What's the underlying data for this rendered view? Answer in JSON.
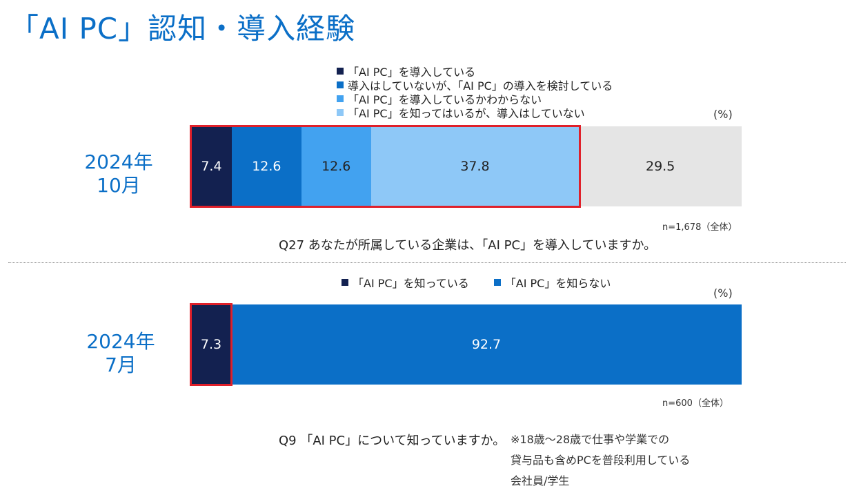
{
  "title": "「AI PC」認知・導入経験",
  "colors": {
    "title": "#0b6fc7",
    "highlight": "#e0202a",
    "navy": "#132150",
    "blue": "#0b6fc7",
    "mid_blue": "#42a2f0",
    "light_blue": "#8ec8f7",
    "gray": "#e5e5e5"
  },
  "chart_data": [
    {
      "type": "bar",
      "orientation": "horizontal-stacked-100",
      "period": [
        "2024年",
        "10月"
      ],
      "unit": "(%)",
      "series": [
        {
          "name": "「AI PC」を導入している",
          "value": 7.4,
          "color": "#132150",
          "text_color": "#ffffff"
        },
        {
          "name": "導入はしていないが、「AI PC」の導入を検討している",
          "value": 12.6,
          "color": "#0b6fc7",
          "text_color": "#ffffff"
        },
        {
          "name": "「AI PC」を導入しているかわからない",
          "value": 12.6,
          "color": "#42a2f0",
          "text_color": "#222222"
        },
        {
          "name": "「AI PC」を知ってはいるが、導入はしていない",
          "value": 37.8,
          "color": "#8ec8f7",
          "text_color": "#222222"
        },
        {
          "name": "",
          "value": 29.5,
          "color": "#e5e5e5",
          "text_color": "#222222"
        }
      ],
      "highlighted_series_count": 4,
      "sample": "n=1,678（全体）",
      "question": "Q27 あなたが所属している企業は、「AI PC」を導入していますか。"
    },
    {
      "type": "bar",
      "orientation": "horizontal-stacked-100",
      "period": [
        "2024年",
        "7月"
      ],
      "unit": "(%)",
      "series": [
        {
          "name": "「AI PC」を知っている",
          "value": 7.3,
          "color": "#132150",
          "text_color": "#ffffff"
        },
        {
          "name": "「AI PC」を知らない",
          "value": 92.7,
          "color": "#0b6fc7",
          "text_color": "#ffffff"
        }
      ],
      "highlighted_series_count": 1,
      "sample": "n=600（全体）",
      "question": "Q9 「AI PC」について知っていますか。",
      "note": [
        "※18歳～28歳で仕事や学業での",
        "貸与品も含めPCを普段利用している",
        "会社員/学生"
      ]
    }
  ]
}
